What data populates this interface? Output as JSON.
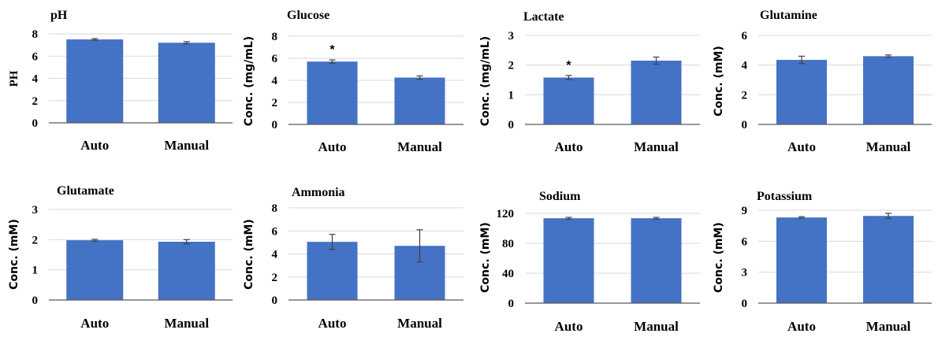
{
  "colors": {
    "bar": "#4472c4",
    "grid": "#d9d9d9",
    "axis": "#595959",
    "error": "#404040"
  },
  "chart_data": [
    {
      "type": "bar",
      "title": "pH",
      "ylabel": "PH",
      "categories": [
        "Auto",
        "Manual"
      ],
      "values": [
        7.5,
        7.2
      ],
      "errors": [
        0.07,
        0.1
      ],
      "ylim": [
        0,
        8
      ],
      "yticks": [
        "0",
        "2",
        "4",
        "6",
        "8"
      ],
      "annotations": [
        "",
        ""
      ],
      "grid": true
    },
    {
      "type": "bar",
      "title": "Glucose",
      "ylabel": "Conc. (mg/mL)",
      "categories": [
        "Auto",
        "Manual"
      ],
      "values": [
        5.7,
        4.25
      ],
      "errors": [
        0.15,
        0.15
      ],
      "ylim": [
        0,
        8
      ],
      "yticks": [
        "0",
        "2",
        "4",
        "6",
        "8"
      ],
      "annotations": [
        "*",
        ""
      ],
      "grid": true
    },
    {
      "type": "bar",
      "title": "Lactate",
      "ylabel": "Conc. (mg/mL)",
      "categories": [
        "Auto",
        "Manual"
      ],
      "values": [
        1.58,
        2.15
      ],
      "errors": [
        0.07,
        0.12
      ],
      "ylim": [
        0,
        3
      ],
      "yticks": [
        "0",
        "1",
        "2",
        "3"
      ],
      "annotations": [
        "*",
        ""
      ],
      "grid": true
    },
    {
      "type": "bar",
      "title": "Glutamine",
      "ylabel": "Conc. (mM)",
      "categories": [
        "Auto",
        "Manual"
      ],
      "values": [
        4.35,
        4.6
      ],
      "errors": [
        0.25,
        0.08
      ],
      "ylim": [
        0,
        6
      ],
      "yticks": [
        "0",
        "2",
        "4",
        "6"
      ],
      "annotations": [
        "",
        ""
      ],
      "grid": true
    },
    {
      "type": "bar",
      "title": "Glutamate",
      "ylabel": "Conc. (mM)",
      "categories": [
        "Auto",
        "Manual"
      ],
      "values": [
        1.98,
        1.93
      ],
      "errors": [
        0.03,
        0.07
      ],
      "ylim": [
        0,
        3
      ],
      "yticks": [
        "0",
        "1",
        "2",
        "3"
      ],
      "annotations": [
        "",
        ""
      ],
      "grid": true
    },
    {
      "type": "bar",
      "title": "Ammonia",
      "ylabel": "Conc. (mM)",
      "categories": [
        "Auto",
        "Manual"
      ],
      "values": [
        5.05,
        4.7
      ],
      "errors": [
        0.65,
        1.4
      ],
      "ylim": [
        0,
        8
      ],
      "yticks": [
        "0",
        "2",
        "4",
        "6",
        "8"
      ],
      "annotations": [
        "",
        ""
      ],
      "grid": true
    },
    {
      "type": "bar",
      "title": "Sodium",
      "ylabel": "Conc. (mM)",
      "categories": [
        "Auto",
        "Manual"
      ],
      "values": [
        113.5,
        113.5
      ],
      "errors": [
        1.2,
        1.2
      ],
      "ylim": [
        0,
        120
      ],
      "yticks": [
        "0",
        "40",
        "80",
        "120"
      ],
      "annotations": [
        "",
        ""
      ],
      "grid": true
    },
    {
      "type": "bar",
      "title": "Potassium",
      "ylabel": "Conc. (mM)",
      "categories": [
        "Auto",
        "Manual"
      ],
      "values": [
        8.3,
        8.45
      ],
      "errors": [
        0.08,
        0.25
      ],
      "ylim": [
        0,
        9
      ],
      "yticks": [
        "0",
        "3",
        "6",
        "9"
      ],
      "annotations": [
        "",
        ""
      ],
      "grid": true
    }
  ]
}
